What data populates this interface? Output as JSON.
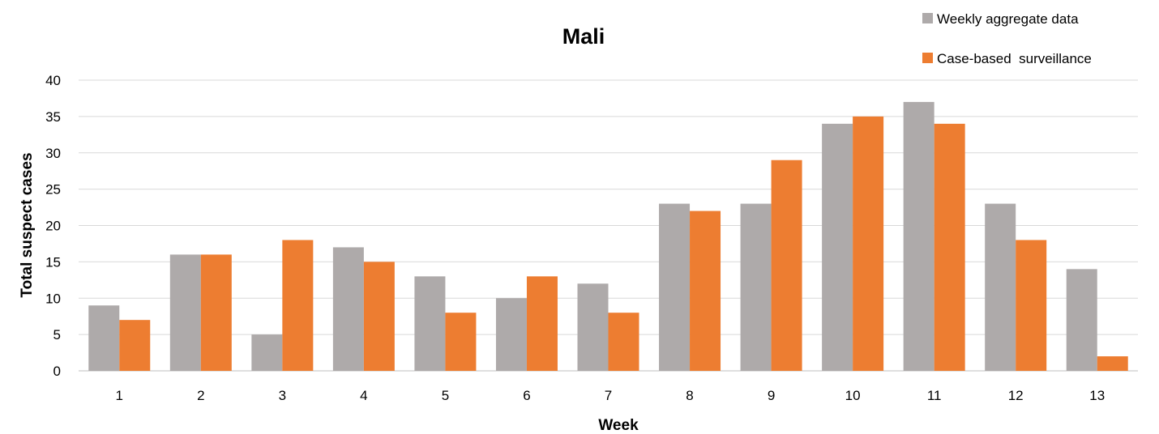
{
  "chart_data": {
    "type": "bar",
    "title": "Mali",
    "xlabel": "Week",
    "ylabel": "Total suspect cases",
    "ylim": [
      0,
      40
    ],
    "yticks": [
      0,
      5,
      10,
      15,
      20,
      25,
      30,
      35,
      40
    ],
    "categories": [
      "1",
      "2",
      "3",
      "4",
      "5",
      "6",
      "7",
      "8",
      "9",
      "10",
      "11",
      "12",
      "13"
    ],
    "series": [
      {
        "name": "Weekly aggregate data",
        "color": "#AEAAAA",
        "values": [
          9,
          16,
          5,
          17,
          13,
          10,
          12,
          23,
          23,
          34,
          37,
          23,
          14
        ]
      },
      {
        "name": "Case-based  surveillance",
        "color": "#ED7D31",
        "values": [
          7,
          16,
          18,
          15,
          8,
          13,
          8,
          22,
          29,
          35,
          34,
          18,
          2
        ]
      }
    ],
    "grid": true,
    "legend_position": "top-right"
  }
}
